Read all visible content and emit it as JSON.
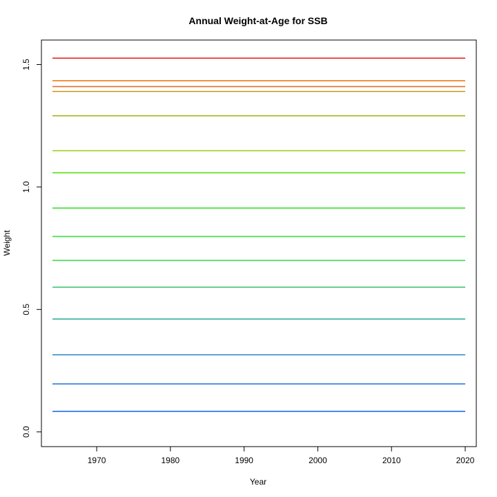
{
  "chart_data": {
    "type": "line",
    "title": "Annual Weight-at-Age for SSB",
    "xlabel": "Year",
    "ylabel": "Weight",
    "xlim": [
      1962.5,
      2021.5
    ],
    "ylim": [
      -0.06,
      1.6
    ],
    "x_ticks": [
      1970,
      1980,
      1990,
      2000,
      2010,
      2020
    ],
    "y_ticks": [
      0.0,
      0.5,
      1.0,
      1.5
    ],
    "y_tick_labels": [
      "0.0",
      "0.5",
      "1.0",
      "1.5"
    ],
    "x_range": [
      1964,
      2020
    ],
    "grid": false,
    "legend": "none",
    "series": [
      {
        "value": 0.084,
        "color": "#1E6FE6"
      },
      {
        "value": 0.196,
        "color": "#2A7BE0"
      },
      {
        "value": 0.315,
        "color": "#3A8FC8"
      },
      {
        "value": 0.461,
        "color": "#30B09A"
      },
      {
        "value": 0.591,
        "color": "#46C27A"
      },
      {
        "value": 0.7,
        "color": "#3FD84E"
      },
      {
        "value": 0.798,
        "color": "#35E03A"
      },
      {
        "value": 0.914,
        "color": "#33DF22"
      },
      {
        "value": 1.058,
        "color": "#55DF10"
      },
      {
        "value": 1.148,
        "color": "#9ACB12"
      },
      {
        "value": 1.291,
        "color": "#A7B214"
      },
      {
        "value": 1.39,
        "color": "#CC9218"
      },
      {
        "value": 1.41,
        "color": "#E0702A"
      },
      {
        "value": 1.434,
        "color": "#F07A14"
      },
      {
        "value": 1.526,
        "color": "#E01A18"
      }
    ]
  }
}
